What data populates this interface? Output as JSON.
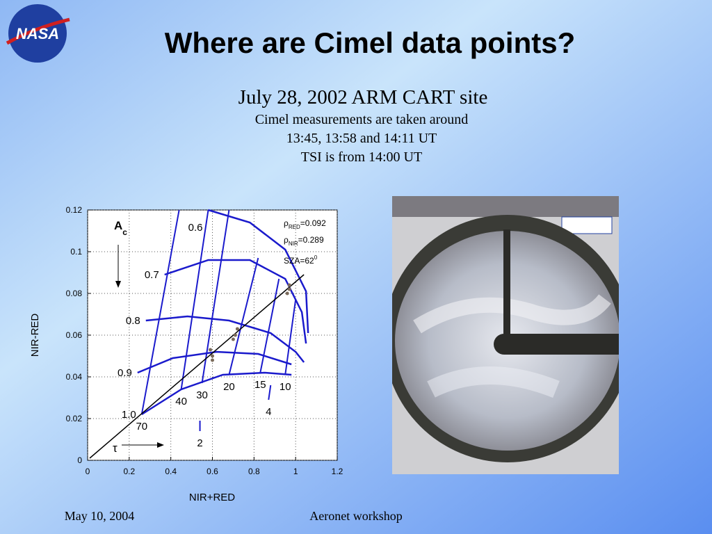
{
  "header": {
    "logo_text": "NASA",
    "title": "Where are Cimel data points?",
    "subtitle": "July 28, 2002 ARM CART site",
    "lines": [
      "Cimel measurements are taken around",
      "13:45, 13:58 and 14:11 UT",
      "TSI is from 14:00 UT"
    ]
  },
  "chart_data": {
    "type": "line",
    "xlabel": "NIR+RED",
    "ylabel": "NIR-RED",
    "xlim": [
      0,
      1.2
    ],
    "ylim": [
      0,
      0.12
    ],
    "xticks": [
      0,
      0.2,
      0.4,
      0.6,
      0.8,
      1,
      1.2
    ],
    "yticks": [
      0,
      0.02,
      0.04,
      0.06,
      0.08,
      0.1,
      0.12
    ],
    "grid": true,
    "series": [
      {
        "name": "0.6",
        "color": "#1a1acc",
        "x": [
          0.58,
          0.78,
          0.95,
          1.05,
          1.06
        ],
        "y": [
          0.12,
          0.114,
          0.101,
          0.081,
          0.061
        ]
      },
      {
        "name": "0.7",
        "color": "#1a1acc",
        "x": [
          0.37,
          0.58,
          0.78,
          0.95,
          1.03,
          1.05
        ],
        "y": [
          0.089,
          0.096,
          0.096,
          0.087,
          0.071,
          0.056
        ]
      },
      {
        "name": "0.8",
        "color": "#1a1acc",
        "x": [
          0.28,
          0.48,
          0.68,
          0.88,
          1.0,
          1.04
        ],
        "y": [
          0.067,
          0.069,
          0.067,
          0.061,
          0.052,
          0.047
        ]
      },
      {
        "name": "0.9",
        "color": "#1a1acc",
        "x": [
          0.24,
          0.41,
          0.62,
          0.82,
          0.98
        ],
        "y": [
          0.042,
          0.049,
          0.052,
          0.051,
          0.046
        ]
      },
      {
        "name": "1.0",
        "color": "#1a1acc",
        "x": [
          0.26,
          0.45,
          0.65,
          0.85,
          0.98
        ],
        "y": [
          0.022,
          0.034,
          0.041,
          0.042,
          0.041
        ]
      }
    ],
    "tau_series": [
      {
        "name": "70",
        "color": "#1a1acc",
        "x": [
          0.26,
          0.44
        ],
        "y": [
          0.022,
          0.12
        ]
      },
      {
        "name": "40",
        "color": "#1a1acc",
        "x": [
          0.45,
          0.58
        ],
        "y": [
          0.034,
          0.12
        ]
      },
      {
        "name": "30",
        "color": "#1a1acc",
        "x": [
          0.55,
          0.68
        ],
        "y": [
          0.037,
          0.12
        ]
      },
      {
        "name": "20",
        "color": "#1a1acc",
        "x": [
          0.68,
          0.82
        ],
        "y": [
          0.041,
          0.097
        ]
      },
      {
        "name": "15",
        "color": "#1a1acc",
        "x": [
          0.83,
          0.92
        ],
        "y": [
          0.042,
          0.087
        ]
      },
      {
        "name": "10",
        "color": "#1a1acc",
        "x": [
          0.95,
          1.0
        ],
        "y": [
          0.041,
          0.077
        ]
      },
      {
        "name": "4",
        "color": "#1a1acc",
        "x": [
          0.87,
          0.88
        ],
        "y": [
          0.029,
          0.036
        ]
      },
      {
        "name": "2",
        "color": "#1a1acc",
        "x": [
          0.54,
          0.54
        ],
        "y": [
          0.014,
          0.019
        ]
      }
    ],
    "fit_line": {
      "color": "#000000",
      "x": [
        0.01,
        1.04
      ],
      "y": [
        0.001,
        0.089
      ]
    },
    "points": {
      "color": "#7a6a5a",
      "x": [
        0.59,
        0.6,
        0.6,
        0.7,
        0.72,
        0.71,
        0.97,
        0.96,
        0.97
      ],
      "y": [
        0.053,
        0.048,
        0.05,
        0.058,
        0.063,
        0.06,
        0.084,
        0.08,
        0.082
      ]
    },
    "ac_label": {
      "text": "A",
      "sub": "c"
    },
    "tau_label": "τ",
    "rho_red": {
      "symbol": "ρ",
      "sub": "RED",
      "value": "=0.092"
    },
    "rho_nir": {
      "symbol": "ρ",
      "sub": "NIR",
      "value": "=0.289"
    },
    "sza": {
      "text": "SZA=62",
      "sup": "0"
    }
  },
  "footer": {
    "date": "May 10, 2004",
    "event": "Aeronet workshop"
  }
}
